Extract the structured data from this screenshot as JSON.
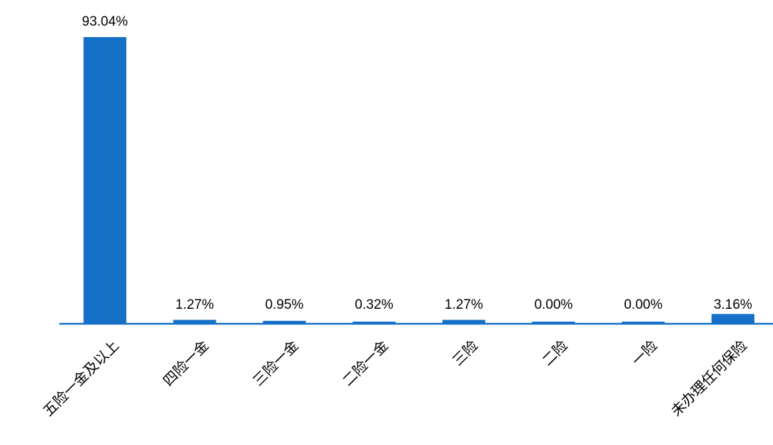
{
  "chart_data": {
    "type": "bar",
    "categories": [
      "五险一金及以上",
      "四险一金",
      "三险一金",
      "二险一金",
      "三险",
      "二险",
      "一险",
      "未办理任何保险"
    ],
    "values": [
      93.04,
      1.27,
      0.95,
      0.32,
      1.27,
      0.0,
      0.0,
      3.16
    ],
    "value_labels": [
      "93.04%",
      "1.27%",
      "0.95%",
      "0.32%",
      "1.27%",
      "0.00%",
      "0.00%",
      "3.16%"
    ],
    "title": "",
    "xlabel": "",
    "ylabel": "",
    "ylim": [
      0,
      93.04
    ],
    "grid": false,
    "legend": "none",
    "colors": {
      "bar": "#1570C7",
      "axis": "#1570C7"
    }
  }
}
